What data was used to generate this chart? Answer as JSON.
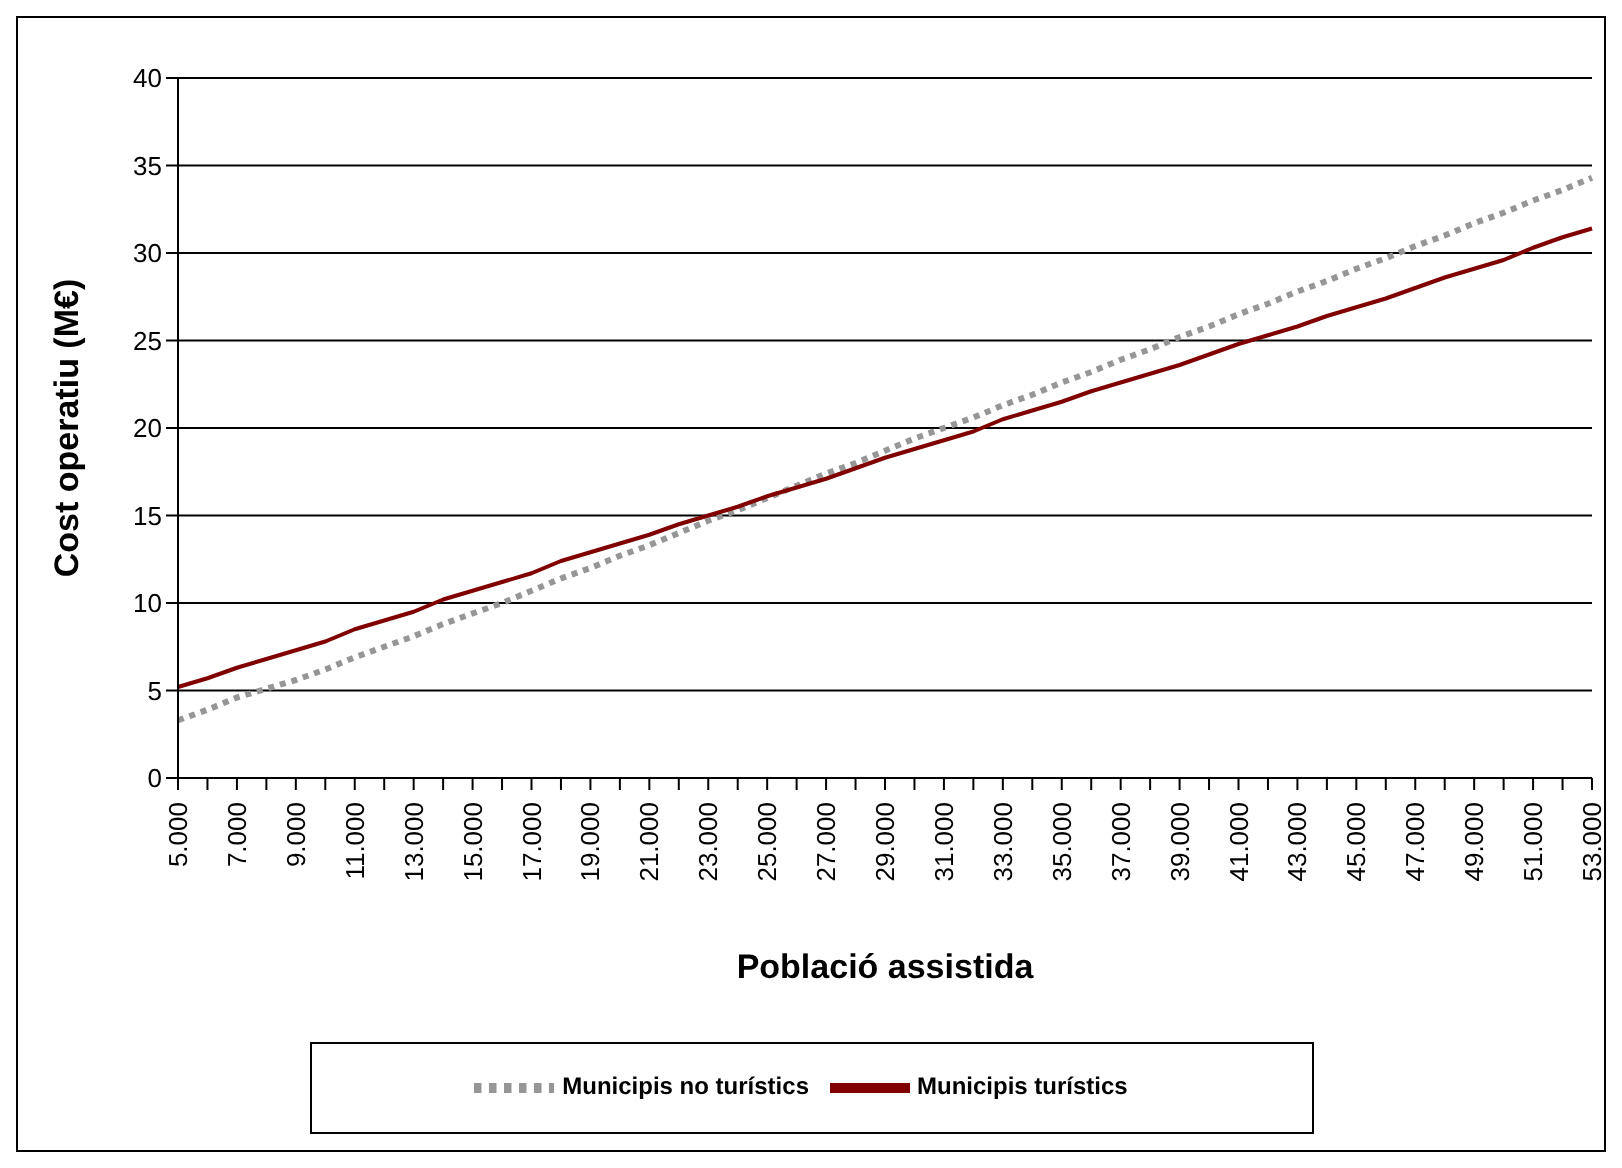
{
  "chart_data": {
    "type": "line",
    "xlabel": "Població assistida",
    "ylabel": "Cost operatiu (M€)",
    "categories": [
      "5.000",
      null,
      "7.000",
      null,
      "9.000",
      null,
      "11.000",
      null,
      "13.000",
      null,
      "15.000",
      null,
      "17.000",
      null,
      "19.000",
      null,
      "21.000",
      null,
      "23.000",
      null,
      "25.000",
      null,
      "27.000",
      null,
      "29.000",
      null,
      "31.000",
      null,
      "33.000",
      null,
      "35.000",
      null,
      "37.000",
      null,
      "39.000",
      null,
      "41.000",
      null,
      "43.000",
      null,
      "45.000",
      null,
      "47.000",
      null,
      "49.000",
      null,
      "51.000",
      null,
      "53.000"
    ],
    "series": [
      {
        "name": "Municipis no turístics",
        "color": "#969696",
        "line_style": "dotted",
        "values": [
          3.3,
          3.9,
          4.6,
          5.1,
          5.6,
          6.2,
          6.9,
          7.5,
          8.1,
          8.8,
          9.4,
          10.0,
          10.7,
          11.4,
          12.0,
          12.7,
          13.3,
          14.0,
          14.7,
          15.3,
          16.0,
          16.7,
          17.4,
          18.0,
          18.7,
          19.4,
          20.0,
          20.6,
          21.3,
          21.9,
          22.6,
          23.2,
          23.9,
          24.5,
          25.2,
          25.8,
          26.5,
          27.1,
          27.8,
          28.4,
          29.1,
          29.7,
          30.4,
          31.0,
          31.7,
          32.3,
          33.0,
          33.6,
          34.3
        ]
      },
      {
        "name": "Municipis turístics",
        "color": "#800000",
        "line_style": "solid",
        "values": [
          5.2,
          5.7,
          6.3,
          6.8,
          7.3,
          7.8,
          8.5,
          9.0,
          9.5,
          10.2,
          10.7,
          11.2,
          11.7,
          12.4,
          12.9,
          13.4,
          13.9,
          14.5,
          15.0,
          15.5,
          16.1,
          16.6,
          17.1,
          17.7,
          18.3,
          18.8,
          19.3,
          19.8,
          20.5,
          21.0,
          21.5,
          22.1,
          22.6,
          23.1,
          23.6,
          24.2,
          24.8,
          25.3,
          25.8,
          26.4,
          26.9,
          27.4,
          28.0,
          28.6,
          29.1,
          29.6,
          30.3,
          30.9,
          31.4
        ]
      }
    ],
    "ylim": [
      0,
      40
    ],
    "yticks": [
      0,
      5,
      10,
      15,
      20,
      25,
      30,
      35,
      40
    ],
    "grid": "y",
    "legend": "bottom",
    "marker": "none"
  }
}
